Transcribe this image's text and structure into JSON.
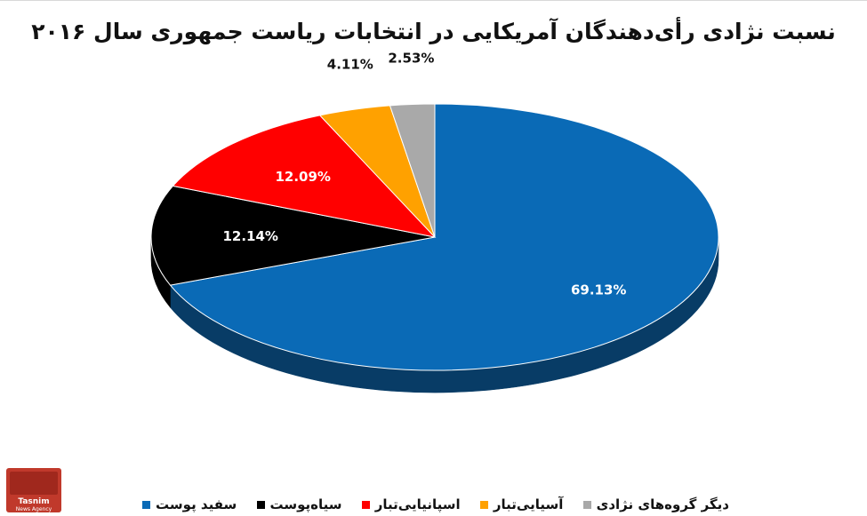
{
  "title": "نسبت نژادی رأی‌دهندگان آمریکایی در انتخابات ریاست جمهوری سال ۲۰۱۶",
  "logo": {
    "text": "Tasnim",
    "subtext": "News Agency"
  },
  "chart_data": {
    "type": "pie",
    "title": "نسبت نژادی رأی‌دهندگان آمریکایی در انتخابات ریاست جمهوری سال ۲۰۱۶",
    "style": "3d",
    "categories": [
      "سفید پوست",
      "سیاه‌پوست",
      "اسپانیایی‌تبار",
      "آسیایی‌تبار",
      "دیگر گروه‌های نژادی"
    ],
    "values": [
      69.13,
      12.14,
      12.09,
      4.11,
      2.53
    ],
    "labels": [
      "69.13%",
      "12.14%",
      "12.09%",
      "4.11%",
      "2.53%"
    ],
    "colors": [
      "#0a6ab6",
      "#000000",
      "#ff0000",
      "#ffa100",
      "#a9a9a9"
    ],
    "side_colors": [
      "#083c66",
      "#000000",
      "#8c0000",
      "#8c5500",
      "#5f5f5f"
    ],
    "label_colors": [
      "#ffffff",
      "#ffffff",
      "#ffffff",
      "#111111",
      "#111111"
    ],
    "legend_position": "bottom"
  }
}
